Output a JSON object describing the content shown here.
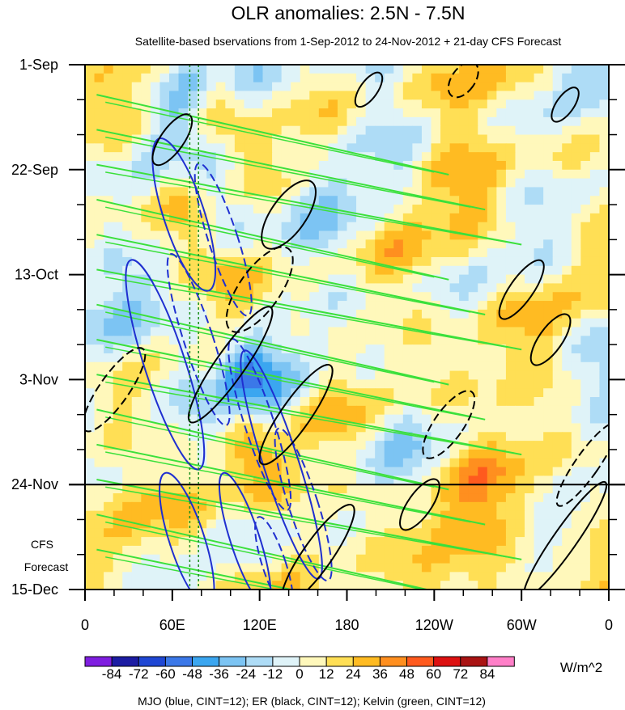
{
  "chart_data": {
    "type": "heatmap",
    "title": "OLR anomalies: 2.5N - 7.5N",
    "subtitle": "Satellite-based bservations from 1-Sep-2012 to 24-Nov-2012 + 21-day CFS Forecast",
    "x": {
      "ticks": [
        {
          "label": "0",
          "lon": 0
        },
        {
          "label": "60E",
          "lon": 60
        },
        {
          "label": "120E",
          "lon": 120
        },
        {
          "label": "180",
          "lon": 180
        },
        {
          "label": "120W",
          "lon": 240
        },
        {
          "label": "60W",
          "lon": 300
        },
        {
          "label": "0",
          "lon": 360
        }
      ],
      "range": [
        0,
        360
      ]
    },
    "y": {
      "ticks": [
        {
          "label": "1-Sep",
          "day": 0
        },
        {
          "label": "22-Sep",
          "day": 21
        },
        {
          "label": "13-Oct",
          "day": 42
        },
        {
          "label": "3-Nov",
          "day": 63
        },
        {
          "label": "24-Nov",
          "day": 84
        },
        {
          "label": "15-Dec",
          "day": 105
        }
      ],
      "range": [
        "1-Sep-2012",
        "15-Dec-2012"
      ],
      "reversed": true
    },
    "forecast_start": "24-Nov",
    "forecast_label": [
      "CFS",
      "Forecast"
    ],
    "colorbar": {
      "labels": [
        "-84",
        "-72",
        "-60",
        "-48",
        "-36",
        "-24",
        "-12",
        "0",
        "12",
        "24",
        "36",
        "48",
        "60",
        "72",
        "84"
      ],
      "colors": [
        "#7f1ee0",
        "#1c1ca3",
        "#1f47d4",
        "#3b78e8",
        "#3ba6f0",
        "#7cc4f3",
        "#aedcf6",
        "#dff3f8",
        "#fff8bb",
        "#ffdf55",
        "#ffbb22",
        "#ff8f1f",
        "#ff5a1e",
        "#dd1111",
        "#a91313",
        "#ff7fc8"
      ],
      "unit": "W/m^2"
    },
    "caption": "MJO (blue, CINT=12); ER (black, CINT=12); Kelvin (green, CINT=12)",
    "contours": {
      "mjo_color": "#1f2fd0",
      "er_color": "#000000",
      "kelvin_color": "#3be03b",
      "reference_line_color": "#1a8f1a"
    },
    "colors": {
      "background": "#ffffff",
      "frame": "#000000"
    }
  }
}
